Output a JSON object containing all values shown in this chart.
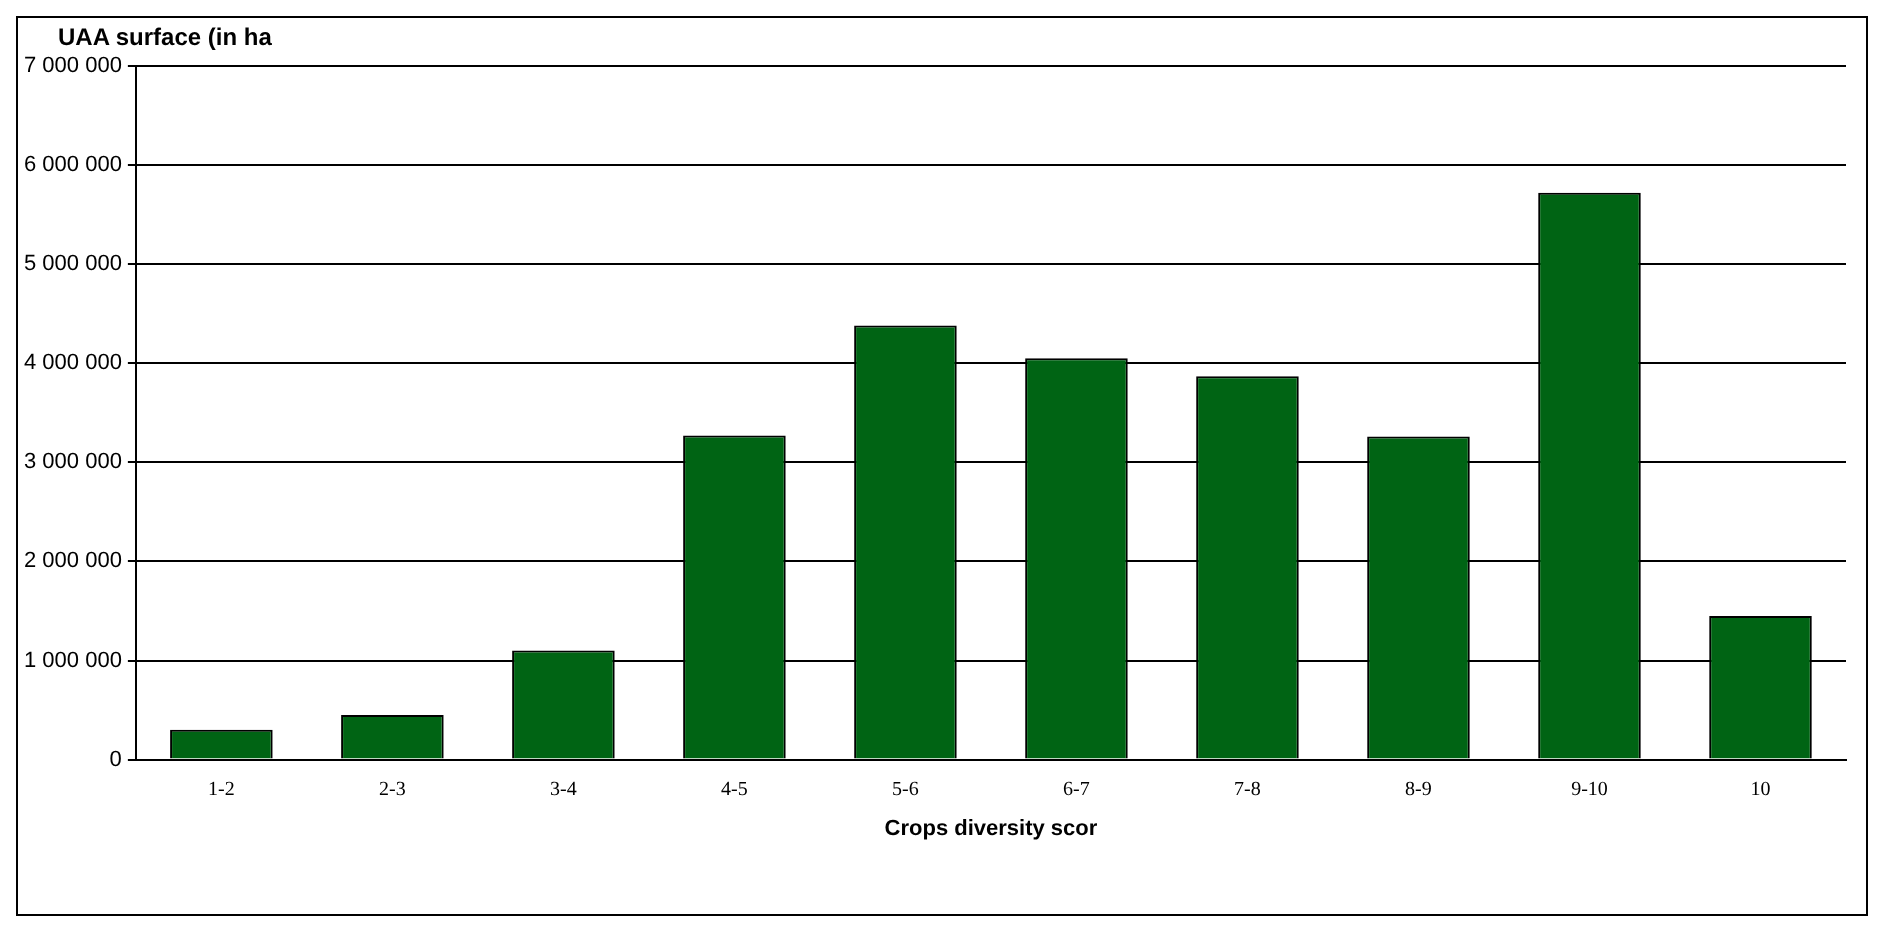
{
  "chart_data": {
    "type": "bar",
    "ylabel": "UAA surface (in ha",
    "xlabel": "Crops diversity scor",
    "categories": [
      "1-2",
      "2-3",
      "3-4",
      "4-5",
      "5-6",
      "6-7",
      "7-8",
      "8-9",
      "9-10",
      "10"
    ],
    "values": [
      300000,
      450000,
      1100000,
      3270000,
      4380000,
      4050000,
      3870000,
      3260000,
      5720000,
      1450000
    ],
    "color": "#006414",
    "ylim": [
      0,
      7000000
    ],
    "yticks": [
      {
        "value": 0,
        "label": "0"
      },
      {
        "value": 1000000,
        "label": "1 000 000"
      },
      {
        "value": 2000000,
        "label": "2 000 000"
      },
      {
        "value": 3000000,
        "label": "3 000 000"
      },
      {
        "value": 4000000,
        "label": "4 000 000"
      },
      {
        "value": 5000000,
        "label": "5 000 000"
      },
      {
        "value": 6000000,
        "label": "6 000 000"
      },
      {
        "value": 7000000,
        "label": "7 000 000"
      }
    ],
    "grid": "y",
    "legend": false
  }
}
